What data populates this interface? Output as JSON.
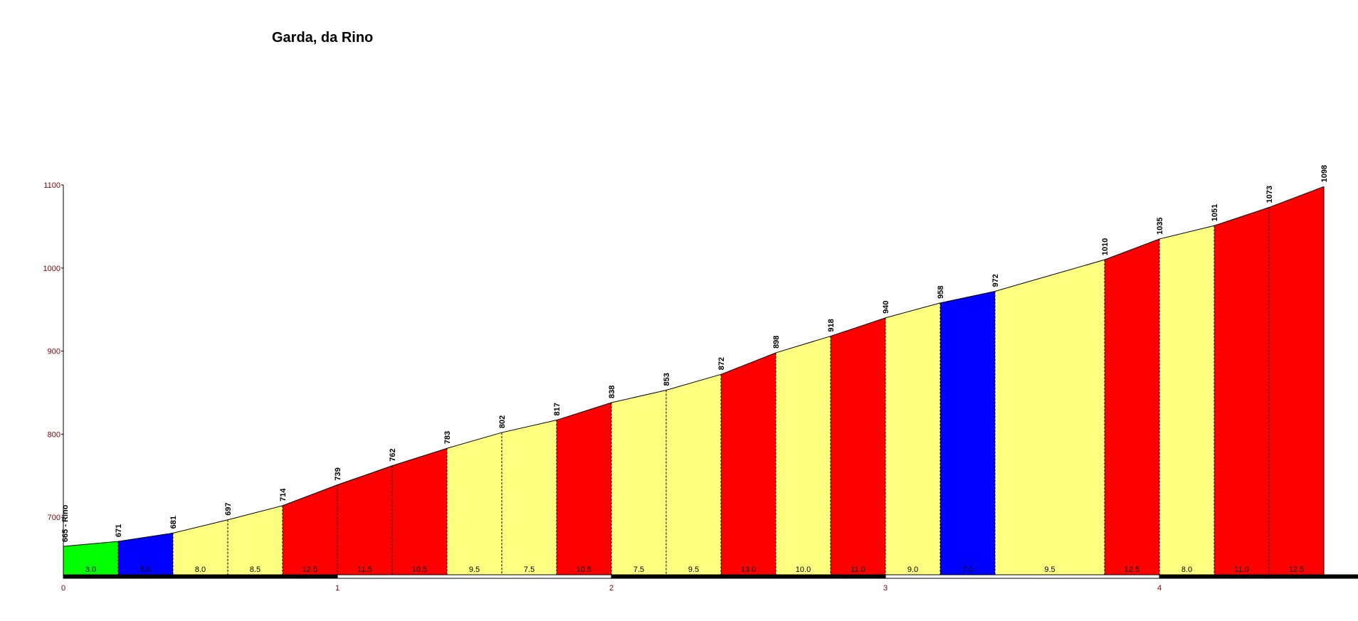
{
  "chart_data": {
    "type": "area",
    "title": "Garda, da Rino",
    "xlabel": "",
    "ylabel": "",
    "xlim": [
      0,
      4.75
    ],
    "ylim": [
      630,
      1100
    ],
    "x_ticks": [
      "0",
      "1",
      "2",
      "3",
      "4"
    ],
    "y_ticks": [
      "700",
      "800",
      "900",
      "1000",
      "1100"
    ],
    "points": [
      {
        "km": 0.0,
        "alt": 665,
        "label": "665 - Rino"
      },
      {
        "km": 0.2,
        "alt": 671,
        "label": "671"
      },
      {
        "km": 0.4,
        "alt": 681,
        "label": "681"
      },
      {
        "km": 0.6,
        "alt": 697,
        "label": "697"
      },
      {
        "km": 0.8,
        "alt": 714,
        "label": "714"
      },
      {
        "km": 1.0,
        "alt": 739,
        "label": "739"
      },
      {
        "km": 1.2,
        "alt": 762,
        "label": "762"
      },
      {
        "km": 1.4,
        "alt": 783,
        "label": "783"
      },
      {
        "km": 1.6,
        "alt": 802,
        "label": "802"
      },
      {
        "km": 1.8,
        "alt": 817,
        "label": "817"
      },
      {
        "km": 2.0,
        "alt": 838,
        "label": "838"
      },
      {
        "km": 2.2,
        "alt": 853,
        "label": "853"
      },
      {
        "km": 2.4,
        "alt": 872,
        "label": "872"
      },
      {
        "km": 2.6,
        "alt": 898,
        "label": "898"
      },
      {
        "km": 2.8,
        "alt": 918,
        "label": "918"
      },
      {
        "km": 3.0,
        "alt": 940,
        "label": "940"
      },
      {
        "km": 3.2,
        "alt": 958,
        "label": "958"
      },
      {
        "km": 3.4,
        "alt": 972,
        "label": "972"
      },
      {
        "km": 3.8,
        "alt": 1010,
        "label": "1010"
      },
      {
        "km": 4.0,
        "alt": 1035,
        "label": "1035"
      },
      {
        "km": 4.2,
        "alt": 1051,
        "label": "1051"
      },
      {
        "km": 4.4,
        "alt": 1073,
        "label": "1073"
      },
      {
        "km": 4.6,
        "alt": 1098,
        "label": "1098"
      }
    ],
    "segments": [
      {
        "grade": "3.0",
        "color": "#00ff00"
      },
      {
        "grade": "5.0",
        "color": "#0000ff"
      },
      {
        "grade": "8.0",
        "color": "#ffff80"
      },
      {
        "grade": "8.5",
        "color": "#ffff80"
      },
      {
        "grade": "12.5",
        "color": "#ff0000"
      },
      {
        "grade": "11.5",
        "color": "#ff0000"
      },
      {
        "grade": "10.5",
        "color": "#ff0000"
      },
      {
        "grade": "9.5",
        "color": "#ffff80"
      },
      {
        "grade": "7.5",
        "color": "#ffff80"
      },
      {
        "grade": "10.5",
        "color": "#ff0000"
      },
      {
        "grade": "7.5",
        "color": "#ffff80"
      },
      {
        "grade": "9.5",
        "color": "#ffff80"
      },
      {
        "grade": "13.0",
        "color": "#ff0000"
      },
      {
        "grade": "10.0",
        "color": "#ffff80"
      },
      {
        "grade": "11.0",
        "color": "#ff0000"
      },
      {
        "grade": "9.0",
        "color": "#ffff80"
      },
      {
        "grade": "7.0",
        "color": "#0000ff"
      },
      {
        "grade": "9.5",
        "color": "#ffff80"
      },
      {
        "grade": "12.5",
        "color": "#ff0000"
      },
      {
        "grade": "8.0",
        "color": "#ffff80"
      },
      {
        "grade": "11.0",
        "color": "#ff0000"
      },
      {
        "grade": "12.5",
        "color": "#ff0000"
      }
    ],
    "colors": {
      "axis_label": "#800000",
      "outline": "#000000"
    }
  }
}
